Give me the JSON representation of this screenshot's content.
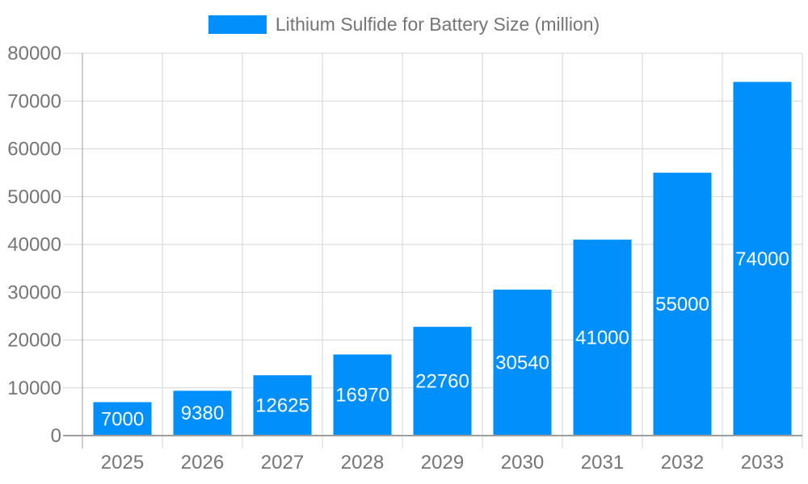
{
  "legend": {
    "label": "Lithium Sulfide for Battery Size (million)"
  },
  "chart_data": {
    "type": "bar",
    "title": "",
    "xlabel": "",
    "ylabel": "",
    "categories": [
      "2025",
      "2026",
      "2027",
      "2028",
      "2029",
      "2030",
      "2031",
      "2032",
      "2033"
    ],
    "values": [
      7000,
      9380,
      12625,
      16970,
      22760,
      30540,
      41000,
      55000,
      74000
    ],
    "series_name": "Lithium Sulfide for Battery Size (million)",
    "ylim": [
      0,
      80000
    ],
    "yticks": [
      0,
      10000,
      20000,
      30000,
      40000,
      50000,
      60000,
      70000,
      80000
    ],
    "grid": true,
    "legend_position": "top",
    "value_label_position": "inside-center"
  },
  "colors": {
    "bar": "#008FFB",
    "axis_text": "#757575",
    "value_label": "#ffffff",
    "gridline": "#d6d6d6",
    "axis_line": "#9e9e9e",
    "background": "#ffffff"
  }
}
